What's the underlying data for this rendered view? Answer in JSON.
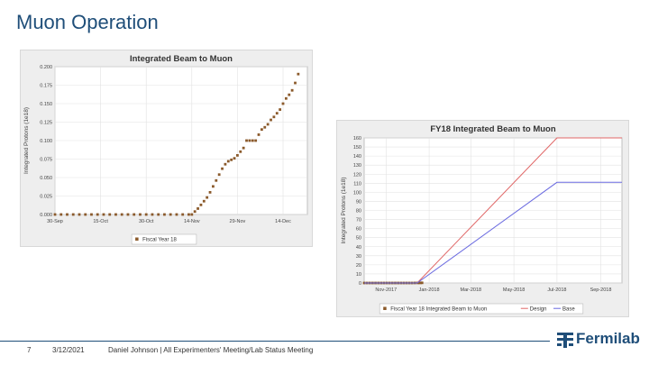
{
  "slide": {
    "title": "Muon Operation",
    "page_number": "7",
    "date": "3/12/2021",
    "footer_caption": "Daniel Johnson | All Experimenters' Meeting/Lab Status Meeting",
    "logo_text": "Fermilab"
  },
  "colors": {
    "title": "#1f4e79",
    "fiscal_series": "#8b5a2b",
    "design_series": "#e06666",
    "base_series": "#6a6ae0"
  },
  "chart_data": [
    {
      "type": "scatter",
      "title": "Integrated Beam to Muon",
      "ylabel": "Integrated Protons (1e18)",
      "xlabel": "",
      "ylim": [
        0,
        0.2
      ],
      "yticks": [
        "0.000",
        "0.025",
        "0.050",
        "0.075",
        "0.100",
        "0.125",
        "0.150",
        "0.175",
        "0.200"
      ],
      "xticks": [
        "30-Sep",
        "15-Oct",
        "30-Oct",
        "14-Nov",
        "29-Nov",
        "14-Dec"
      ],
      "xtick_days": [
        0,
        15,
        30,
        45,
        60,
        75
      ],
      "xlim_days": [
        0,
        83
      ],
      "legend_position": "bottom",
      "grid": true,
      "series": [
        {
          "name": "Fiscal Year 18",
          "x": [
            0,
            2,
            4,
            6,
            8,
            10,
            12,
            14,
            16,
            18,
            20,
            22,
            24,
            26,
            28,
            30,
            32,
            34,
            36,
            38,
            40,
            42,
            44,
            45,
            46,
            47,
            48,
            49,
            50,
            51,
            52,
            53,
            54,
            55,
            56,
            57,
            58,
            59,
            60,
            61,
            62,
            63,
            64,
            65,
            66,
            67,
            68,
            69,
            70,
            71,
            72,
            73,
            74,
            75,
            76,
            77,
            78,
            79,
            80
          ],
          "y": [
            0,
            0,
            0,
            0,
            0,
            0,
            0,
            0,
            0,
            0,
            0,
            0,
            0,
            0,
            0,
            0,
            0,
            0,
            0,
            0,
            0,
            0,
            0,
            0,
            0.004,
            0.008,
            0.013,
            0.018,
            0.023,
            0.03,
            0.038,
            0.046,
            0.054,
            0.062,
            0.068,
            0.072,
            0.074,
            0.076,
            0.08,
            0.085,
            0.09,
            0.1,
            0.1,
            0.1,
            0.1,
            0.108,
            0.115,
            0.118,
            0.122,
            0.128,
            0.132,
            0.137,
            0.142,
            0.15,
            0.157,
            0.162,
            0.168,
            0.178,
            0.19
          ]
        }
      ]
    },
    {
      "type": "line",
      "title": "FY18 Integrated Beam to Muon",
      "ylabel": "Integrated Protons (1e18)",
      "xlabel": "",
      "ylim": [
        0,
        160
      ],
      "yticks": [
        0,
        10,
        20,
        30,
        40,
        50,
        60,
        70,
        80,
        90,
        100,
        110,
        120,
        130,
        140,
        150,
        160
      ],
      "xticks": [
        "Nov-2017",
        "Jan-2018",
        "Mar-2018",
        "May-2018",
        "Jul-2018",
        "Sep-2018"
      ],
      "xtick_days": [
        31,
        92,
        151,
        212,
        273,
        335
      ],
      "xlim_days": [
        0,
        365
      ],
      "legend_position": "bottom",
      "grid": true,
      "series": [
        {
          "name": "Fiscal Year 18 Integrated Beam to Muon",
          "kind": "points",
          "x": [
            0,
            4,
            8,
            12,
            16,
            20,
            24,
            28,
            32,
            36,
            40,
            44,
            48,
            52,
            56,
            60,
            64,
            68,
            72,
            76,
            78,
            80,
            82
          ],
          "y": [
            0,
            0,
            0,
            0,
            0,
            0,
            0,
            0,
            0,
            0,
            0,
            0,
            0,
            0,
            0,
            0,
            0,
            0,
            0.05,
            0.1,
            0.13,
            0.16,
            0.19
          ]
        },
        {
          "name": "Design",
          "kind": "line",
          "x": [
            0,
            75,
            273,
            365
          ],
          "y": [
            0,
            0,
            160,
            160
          ]
        },
        {
          "name": "Base",
          "kind": "line",
          "x": [
            0,
            75,
            273,
            365
          ],
          "y": [
            0,
            0,
            111,
            111
          ]
        }
      ]
    }
  ]
}
